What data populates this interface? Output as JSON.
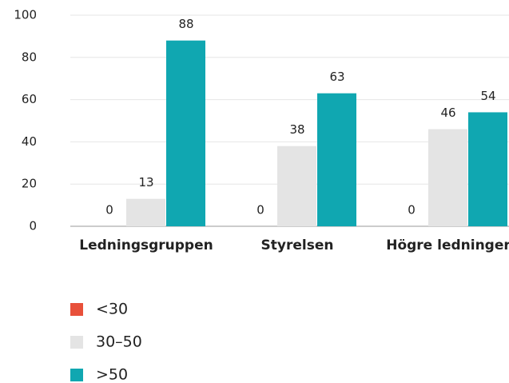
{
  "chart_data": {
    "type": "bar",
    "categories": [
      "Ledningsgruppen",
      "Styrelsen",
      "Högre ledninger"
    ],
    "series": [
      {
        "name": "<30",
        "color": "#e8503a",
        "values": [
          0,
          0,
          0
        ]
      },
      {
        "name": "30–50",
        "color": "#e4e4e4",
        "values": [
          13,
          38,
          46
        ]
      },
      {
        "name": ">50",
        "color": "#10a7b1",
        "values": [
          88,
          63,
          54
        ]
      }
    ],
    "ylim": [
      0,
      100
    ],
    "yticks": [
      0,
      20,
      40,
      60,
      80,
      100
    ],
    "grid": true
  }
}
